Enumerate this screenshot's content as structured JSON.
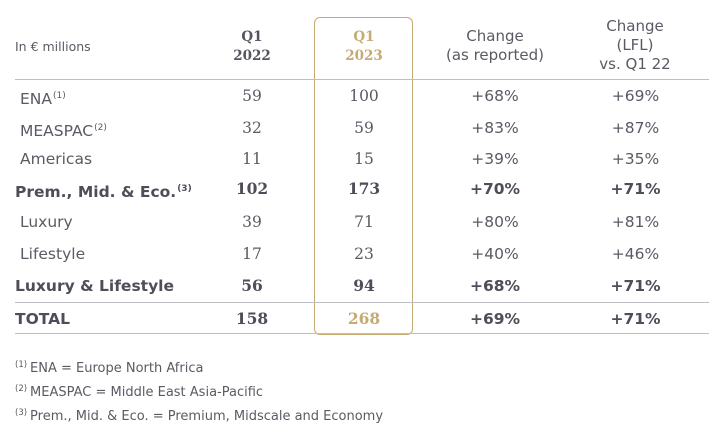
{
  "header": {
    "caption": "In € millions",
    "col1_line1": "Q1",
    "col1_line2": "2022",
    "col2_line1": "Q1",
    "col2_line2": "2023",
    "col3_line1": "Change",
    "col3_line2": "(as reported)",
    "col4_line1": "Change",
    "col4_line2": "(LFL)",
    "col4_line3": "vs. Q1 22"
  },
  "rows": [
    {
      "label": "ENA",
      "note": "(1)",
      "q1_2022": "59",
      "q1_2023": "100",
      "change_reported": "+68%",
      "change_lfl": "+69%"
    },
    {
      "label": "MEASPAC",
      "note": "(2)",
      "q1_2022": "32",
      "q1_2023": "59",
      "change_reported": "+83%",
      "change_lfl": "+87%"
    },
    {
      "label": "Americas",
      "note": "",
      "q1_2022": "11",
      "q1_2023": "15",
      "change_reported": "+39%",
      "change_lfl": "+35%"
    },
    {
      "label": "Prem., Mid. & Eco.",
      "note": "(3)",
      "q1_2022": "102",
      "q1_2023": "173",
      "change_reported": "+70%",
      "change_lfl": "+71%"
    },
    {
      "label": "Luxury",
      "note": "",
      "q1_2022": "39",
      "q1_2023": "71",
      "change_reported": "+80%",
      "change_lfl": "+81%"
    },
    {
      "label": "Lifestyle",
      "note": "",
      "q1_2022": "17",
      "q1_2023": "23",
      "change_reported": "+40%",
      "change_lfl": "+46%"
    },
    {
      "label": "Luxury & Lifestyle",
      "note": "",
      "q1_2022": "56",
      "q1_2023": "94",
      "change_reported": "+68%",
      "change_lfl": "+71%"
    },
    {
      "label": "TOTAL",
      "note": "",
      "q1_2022": "158",
      "q1_2023": "268",
      "change_reported": "+69%",
      "change_lfl": "+71%"
    }
  ],
  "footnotes": [
    {
      "mark": "(1)",
      "text": "ENA = Europe North Africa"
    },
    {
      "mark": "(2)",
      "text": "MEASPAC = Middle East Asia-Pacific"
    },
    {
      "mark": "(3)",
      "text": "Prem., Mid. & Eco. = Premium, Midscale and Economy"
    }
  ],
  "colors": {
    "highlight": "#c6aa72",
    "text": "#5a5a64",
    "rule": "#bdbdc4"
  }
}
